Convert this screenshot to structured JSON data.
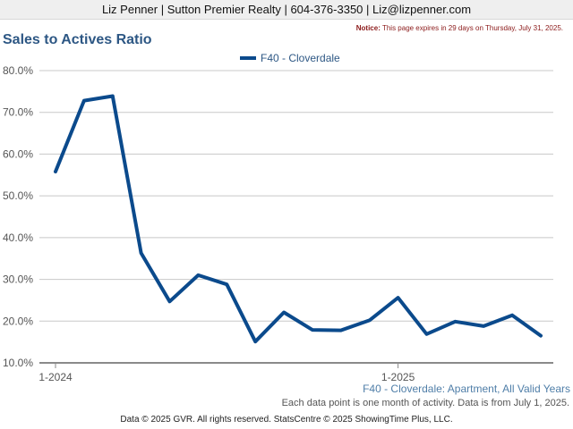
{
  "header": {
    "contact": "Liz Penner | Sutton Premier Realty | 604-376-3350 | Liz@lizpenner.com"
  },
  "notice": {
    "label": "Notice:",
    "text": " This page expires in 29 days on Thursday, July 31, 2025."
  },
  "footer": {
    "subtitle": "F40 - Cloverdale: Apartment, All Valid Years",
    "footnote": "Each data point is one month of activity. Data is from July 1, 2025.",
    "copyright": "Data © 2025 GVR. All rights reserved. StatsCentre © 2025 ShowingTime Plus, LLC."
  },
  "chart_data": {
    "type": "line",
    "title": "Sales to Actives Ratio",
    "xlabel": "",
    "ylabel": "",
    "x": [
      "2024-01",
      "2024-02",
      "2024-03",
      "2024-04",
      "2024-05",
      "2024-06",
      "2024-07",
      "2024-08",
      "2024-09",
      "2024-10",
      "2024-11",
      "2024-12",
      "2025-01",
      "2025-02",
      "2025-03",
      "2025-04",
      "2025-05",
      "2025-06"
    ],
    "x_tick_labels": [
      {
        "x": "2024-01",
        "label": "1-2024"
      },
      {
        "x": "2025-01",
        "label": "1-2025"
      }
    ],
    "ylim": [
      10,
      80
    ],
    "y_ticks": [
      10,
      20,
      30,
      40,
      50,
      60,
      70,
      80
    ],
    "y_tick_format": "percent_1dp",
    "grid": true,
    "legend_position": "top-center",
    "series": [
      {
        "name": "F40 - Cloverdale",
        "color": "#0b4a8c",
        "values": [
          55.8,
          72.8,
          73.9,
          36.3,
          24.7,
          31.0,
          28.8,
          15.1,
          22.1,
          17.9,
          17.8,
          20.2,
          25.6,
          16.9,
          19.9,
          18.8,
          21.4,
          16.5
        ]
      }
    ]
  }
}
